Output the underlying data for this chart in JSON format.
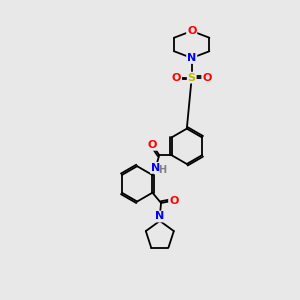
{
  "background_color": "#e8e8e8",
  "bond_color": "#000000",
  "atom_colors": {
    "O": "#ff0000",
    "N": "#0000ff",
    "S": "#bbbb00",
    "C": "#000000",
    "H": "#808080"
  },
  "figsize": [
    3.0,
    3.0
  ],
  "dpi": 100
}
